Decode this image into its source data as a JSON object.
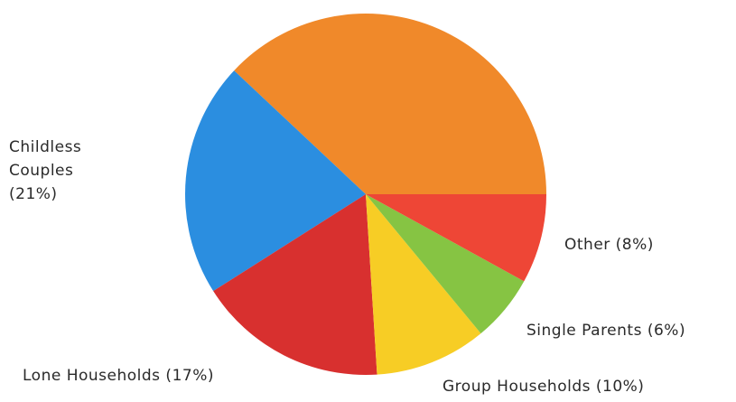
{
  "chart_data": {
    "type": "pie",
    "categories": [
      null,
      "Childless Couples (21%)",
      "Lone Households (17%)",
      "Group Households (10%)",
      "Single Parents (6%)",
      "Other (8%)"
    ],
    "values": [
      38,
      21,
      17,
      10,
      6,
      8
    ],
    "colors": [
      "#f0892a",
      "#2b8ee0",
      "#d8302f",
      "#f7cd25",
      "#86c443",
      "#ee4636"
    ]
  }
}
